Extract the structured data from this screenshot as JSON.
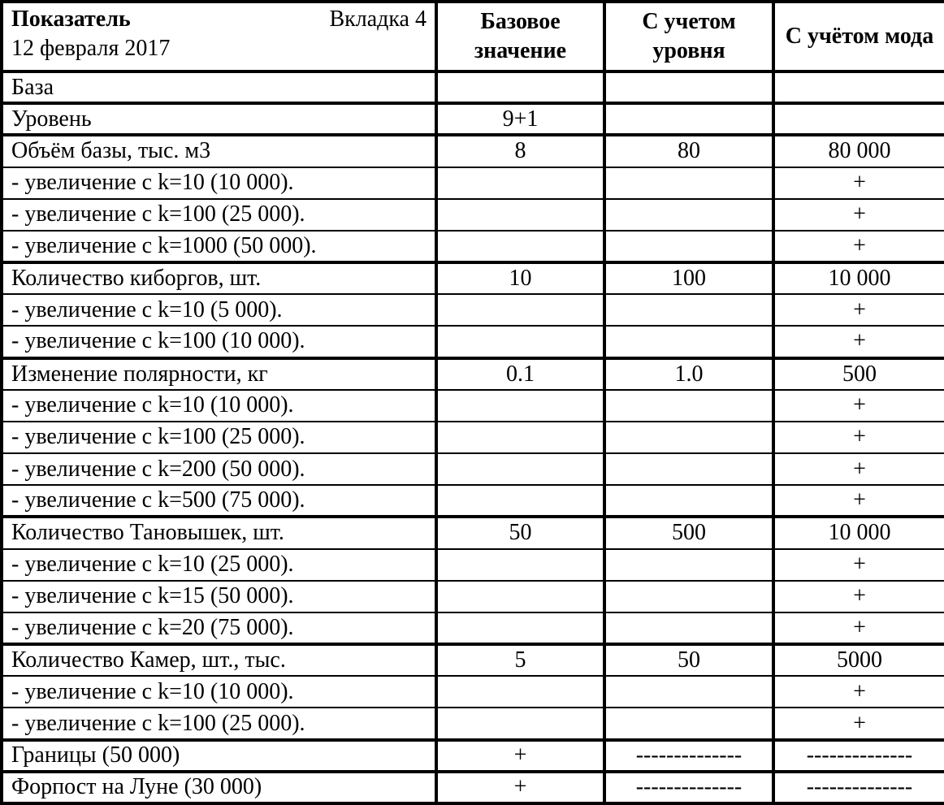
{
  "colors": {
    "text": "#000000",
    "border": "#000000",
    "background": "#ffffff"
  },
  "table": {
    "header": {
      "col1_title": "Показатель",
      "col1_tab": "Вкладка 4",
      "col1_date": "12 февраля 2017",
      "col2": "Базовое значение",
      "col3": "С учетом уровня",
      "col4": "С учётом мода"
    },
    "rows": [
      {
        "type": "group",
        "label": "База",
        "base": "",
        "level": "",
        "mod": ""
      },
      {
        "type": "group",
        "label": "Уровень",
        "base": "9+1",
        "level": "",
        "mod": ""
      },
      {
        "type": "group",
        "label": "Объём базы, тыс. м3",
        "base": "8",
        "level": "80",
        "mod": "80 000"
      },
      {
        "type": "sub",
        "label": "- увеличение с k=10 (10 000).",
        "base": "",
        "level": "",
        "mod": "+"
      },
      {
        "type": "sub",
        "label": "- увеличение с k=100 (25 000).",
        "base": "",
        "level": "",
        "mod": "+"
      },
      {
        "type": "sub",
        "label": "- увеличение с k=1000 (50 000).",
        "base": "",
        "level": "",
        "mod": "+"
      },
      {
        "type": "group",
        "label": "Количество киборгов, шт.",
        "base": "10",
        "level": "100",
        "mod": "10 000"
      },
      {
        "type": "sub",
        "label": "- увеличение с k=10 (5 000).",
        "base": "",
        "level": "",
        "mod": "+"
      },
      {
        "type": "sub",
        "label": "- увеличение с k=100 (10 000).",
        "base": "",
        "level": "",
        "mod": "+"
      },
      {
        "type": "group",
        "label": "Изменение полярности, кг",
        "base": "0.1",
        "level": "1.0",
        "mod": "500"
      },
      {
        "type": "sub",
        "label": "- увеличение с k=10 (10 000).",
        "base": "",
        "level": "",
        "mod": "+"
      },
      {
        "type": "sub",
        "label": "- увеличение с k=100 (25 000).",
        "base": "",
        "level": "",
        "mod": "+"
      },
      {
        "type": "sub",
        "label": "- увеличение с k=200 (50 000).",
        "base": "",
        "level": "",
        "mod": "+"
      },
      {
        "type": "sub",
        "label": "- увеличение с k=500 (75 000).",
        "base": "",
        "level": "",
        "mod": "+"
      },
      {
        "type": "group",
        "label": "Количество Тановышек, шт.",
        "base": "50",
        "level": "500",
        "mod": "10 000"
      },
      {
        "type": "sub",
        "label": "- увеличение с k=10 (25 000).",
        "base": "",
        "level": "",
        "mod": "+"
      },
      {
        "type": "sub",
        "label": "- увеличение с k=15 (50 000).",
        "base": "",
        "level": "",
        "mod": "+"
      },
      {
        "type": "sub",
        "label": "- увеличение с k=20 (75 000).",
        "base": "",
        "level": "",
        "mod": "+"
      },
      {
        "type": "group",
        "label": "Количество Камер, шт., тыс.",
        "base": "5",
        "level": "50",
        "mod": "5000"
      },
      {
        "type": "sub",
        "label": "- увеличение с k=10 (10 000).",
        "base": "",
        "level": "",
        "mod": "+"
      },
      {
        "type": "sub",
        "label": "- увеличение с k=100 (25 000).",
        "base": "",
        "level": "",
        "mod": "+"
      },
      {
        "type": "group",
        "label": "Границы (50 000)",
        "base": "+",
        "level": "--------------",
        "mod": "--------------"
      },
      {
        "type": "group",
        "label": "Форпост на Луне (30 000)",
        "base": "+",
        "level": "--------------",
        "mod": "--------------"
      }
    ]
  }
}
